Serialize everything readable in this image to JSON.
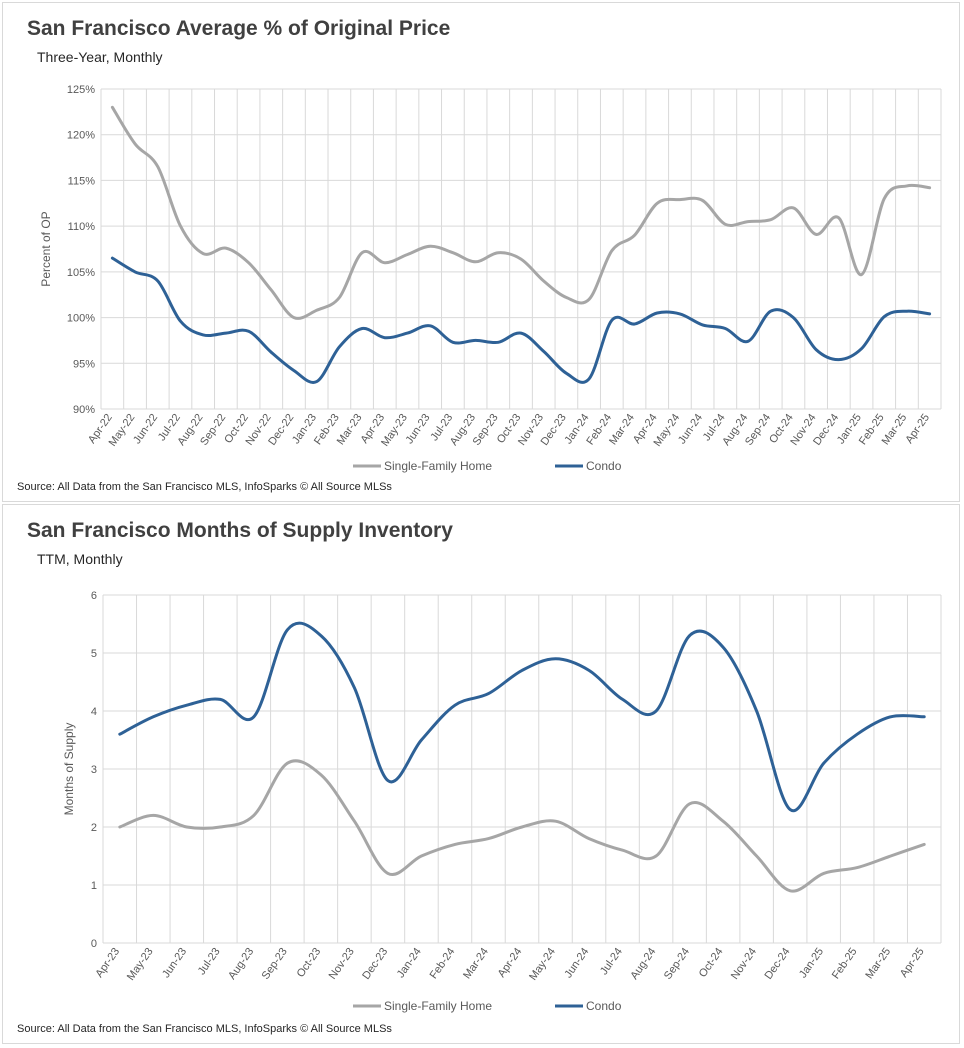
{
  "colors": {
    "sfh": "#a6a6a6",
    "condo": "#2e6196",
    "grid": "#d9d9d9"
  },
  "chart_data": [
    {
      "type": "line",
      "title": "San Francisco Average % of Original Price",
      "subtitle": "Three-Year, Monthly",
      "ylabel": "Percent of OP",
      "ylim": [
        90,
        125
      ],
      "yticks": [
        90,
        95,
        100,
        105,
        110,
        115,
        120,
        125
      ],
      "ytick_labels": [
        "90%",
        "95%",
        "100%",
        "105%",
        "110%",
        "115%",
        "120%",
        "125%"
      ],
      "grid": true,
      "legend": "bottom",
      "categories": [
        "Apr-22",
        "May-22",
        "Jun-22",
        "Jul-22",
        "Aug-22",
        "Sep-22",
        "Oct-22",
        "Nov-22",
        "Dec-22",
        "Jan-23",
        "Feb-23",
        "Mar-23",
        "Apr-23",
        "May-23",
        "Jun-23",
        "Jul-23",
        "Aug-23",
        "Sep-23",
        "Oct-23",
        "Nov-23",
        "Dec-23",
        "Jan-24",
        "Feb-24",
        "Mar-24",
        "Apr-24",
        "May-24",
        "Jun-24",
        "Jul-24",
        "Aug-24",
        "Sep-24",
        "Oct-24",
        "Nov-24",
        "Dec-24",
        "Jan-25",
        "Feb-25",
        "Mar-25",
        "Apr-25"
      ],
      "series": [
        {
          "name": "Single-Family Home",
          "values": [
            123,
            119,
            116.5,
            110,
            107,
            107.6,
            106,
            103,
            100,
            100.8,
            102.2,
            107.1,
            106,
            106.9,
            107.8,
            107.1,
            106.1,
            107.1,
            106.4,
            104,
            102.2,
            102,
            107.3,
            109,
            112.5,
            112.9,
            112.8,
            110.2,
            110.5,
            110.7,
            112,
            109.1,
            110.9,
            104.7,
            113,
            114.4,
            114.2
          ]
        },
        {
          "name": "Condo",
          "values": [
            106.5,
            105,
            104,
            99.6,
            98.1,
            98.3,
            98.5,
            96.2,
            94.2,
            93,
            96.8,
            98.8,
            97.8,
            98.3,
            99.1,
            97.3,
            97.5,
            97.3,
            98.3,
            96.3,
            93.9,
            93.3,
            99.7,
            99.3,
            100.5,
            100.4,
            99.2,
            98.8,
            97.4,
            100.7,
            100,
            96.5,
            95.4,
            96.6,
            100.1,
            100.7,
            100.4
          ]
        }
      ],
      "source": "Source: All Data from the San Francisco MLS, InfoSparks © All Source MLSs"
    },
    {
      "type": "line",
      "title": "San Francisco Months of Supply Inventory",
      "subtitle": "TTM, Monthly",
      "ylabel": "Months of Supply",
      "ylim": [
        0,
        6
      ],
      "yticks": [
        0,
        1,
        2,
        3,
        4,
        5,
        6
      ],
      "ytick_labels": [
        "0",
        "1",
        "2",
        "3",
        "4",
        "5",
        "6"
      ],
      "grid": true,
      "legend": "bottom",
      "categories": [
        "Apr-23",
        "May-23",
        "Jun-23",
        "Jul-23",
        "Aug-23",
        "Sep-23",
        "Oct-23",
        "Nov-23",
        "Dec-23",
        "Jan-24",
        "Feb-24",
        "Mar-24",
        "Apr-24",
        "May-24",
        "Jun-24",
        "Jul-24",
        "Aug-24",
        "Sep-24",
        "Oct-24",
        "Nov-24",
        "Dec-24",
        "Jan-25",
        "Feb-25",
        "Mar-25",
        "Apr-25"
      ],
      "series": [
        {
          "name": "Single-Family Home",
          "values": [
            2.0,
            2.2,
            2.0,
            2.0,
            2.2,
            3.1,
            2.9,
            2.1,
            1.2,
            1.5,
            1.7,
            1.8,
            2.0,
            2.1,
            1.8,
            1.6,
            1.5,
            2.4,
            2.1,
            1.5,
            0.9,
            1.2,
            1.3,
            1.5,
            1.7
          ]
        },
        {
          "name": "Condo",
          "values": [
            3.6,
            3.9,
            4.1,
            4.2,
            3.9,
            5.4,
            5.3,
            4.4,
            2.8,
            3.5,
            4.1,
            4.3,
            4.7,
            4.9,
            4.7,
            4.2,
            4.0,
            5.3,
            5.1,
            4.0,
            2.3,
            3.1,
            3.6,
            3.9,
            3.9
          ]
        }
      ],
      "source": "Source: All Data from the San Francisco MLS, InfoSparks © All Source MLSs"
    }
  ]
}
